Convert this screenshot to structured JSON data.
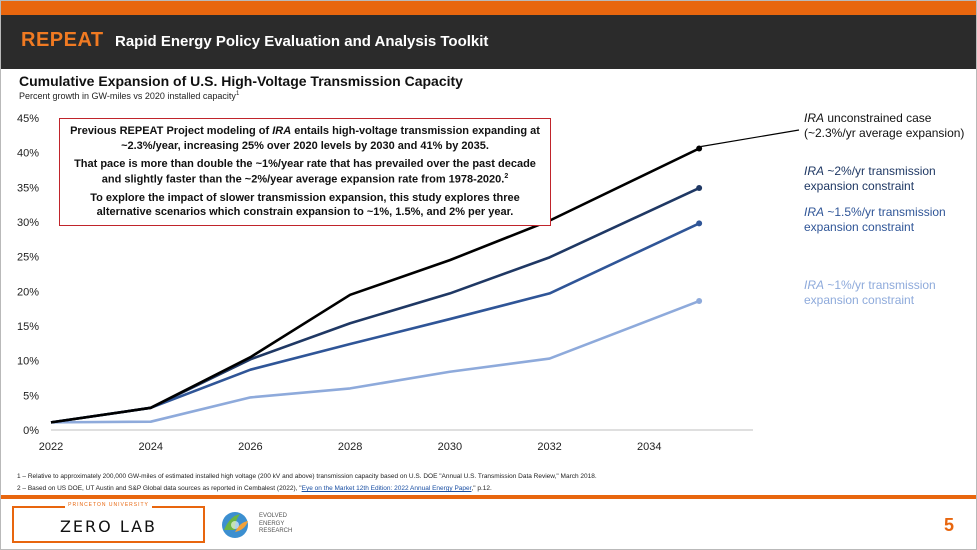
{
  "header": {
    "brand": "REPEAT",
    "subtitle": "Rapid Energy Policy Evaluation and Analysis Toolkit",
    "accent_color": "#e8660e"
  },
  "chart_data": {
    "type": "line",
    "title": "Cumulative Expansion of U.S. High-Voltage Transmission Capacity",
    "subtitle": "Percent growth in GW-miles vs 2020 installed capacity",
    "subtitle_sup": "1",
    "x": [
      2022,
      2024,
      2026,
      2028,
      2030,
      2032,
      2035
    ],
    "x_ticks": [
      2022,
      2024,
      2026,
      2028,
      2030,
      2032,
      2034
    ],
    "x_tick_labels": [
      "2022",
      "2024",
      "2026",
      "2028",
      "2030",
      "2032",
      "2034"
    ],
    "xlim": [
      2022,
      2036
    ],
    "y_ticks": [
      0,
      5,
      10,
      15,
      20,
      25,
      30,
      35,
      40,
      45
    ],
    "y_tick_labels": [
      "0%",
      "5%",
      "10%",
      "15%",
      "20%",
      "25%",
      "30%",
      "35%",
      "40%",
      "45%"
    ],
    "ylim": [
      0,
      45
    ],
    "series": [
      {
        "name": "IRA unconstrained case (~2.3%/yr average expansion)",
        "label_italic": "IRA",
        "label_line1": " unconstrained case",
        "label_line2": "(~2.3%/yr average expansion)",
        "color": "#000000",
        "values": [
          1.1,
          3.2,
          10.5,
          19.5,
          24.5,
          30.2,
          40.6
        ]
      },
      {
        "name": "IRA ~2%/yr transmission expansion constraint",
        "label_italic": "IRA",
        "label_line1": " ~2%/yr transmission",
        "label_line2": "expansion constraint",
        "color": "#1f3864",
        "values": [
          1.1,
          3.2,
          10.2,
          15.4,
          19.7,
          24.9,
          34.9
        ]
      },
      {
        "name": "IRA ~1.5%/yr transmission expansion constraint",
        "label_italic": "IRA",
        "label_line1": " ~1.5%/yr transmission",
        "label_line2": "expansion constraint",
        "color": "#2f5597",
        "values": [
          1.1,
          3.2,
          8.7,
          12.4,
          16.0,
          19.7,
          29.8
        ]
      },
      {
        "name": "IRA ~1%/yr transmission expansion constraint",
        "label_italic": "IRA",
        "label_line1": " ~1%/yr transmission",
        "label_line2": "expansion constraint",
        "color": "#8eaadb",
        "values": [
          1.1,
          1.2,
          4.7,
          6.0,
          8.4,
          10.3,
          18.6
        ]
      }
    ],
    "annotation": {
      "p1": "Previous REPEAT Project modeling of ",
      "p1_italic": "IRA",
      "p1_rest": " entails high-voltage transmission expanding at ~2.3%/year, increasing 25% over 2020 levels by 2030 and 41% by 2035.",
      "p2": "That pace is more than double the ~1%/year rate that has prevailed over the past decade and slightly faster than the ~2%/year average expansion rate from 1978-2020.",
      "p2_sup": "2",
      "p3": "To explore the impact of slower transmission expansion, this study explores three alternative scenarios which constrain expansion to ~1%, 1.5%, and 2% per year."
    }
  },
  "footnotes": {
    "note1": "1 – Relative to approximately 200,000 GW-miles of estimated installed high voltage (200 kV and above) transmission capacity based on U.S. DOE \"Annual U.S. Transmission Data Review,\" March 2018.",
    "note2_pre": "2 – Based on US DOE, UT Austin and S&P Global data sources as reported in Cembalest (2022), \"",
    "note2_link": "Eye on the Market 12th Edition: 2022 Annual Energy Paper",
    "note2_post": ",\" p.12."
  },
  "footer": {
    "zero_lab_small": "PRINCETON UNIVERSITY",
    "zero_lab": "ZERO LAB",
    "eer_line1": "EVOLVED",
    "eer_line2": "ENERGY",
    "eer_line3": "RESEARCH",
    "page_number": "5"
  }
}
